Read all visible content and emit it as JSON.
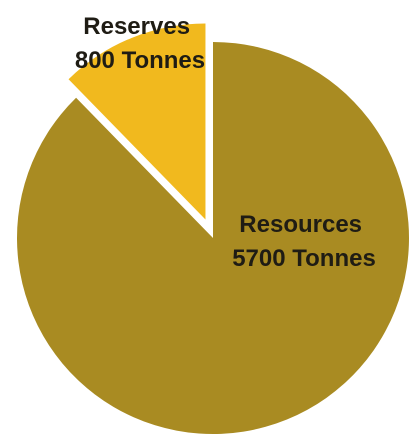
{
  "chart_data": {
    "type": "pie",
    "slices": [
      {
        "category": "Reserves",
        "value": 800,
        "unit": "Tonnes",
        "value_label": "800 Tonnes",
        "color": "#f1b91e",
        "exploded": true
      },
      {
        "category": "Resources",
        "value": 5700,
        "unit": "Tonnes",
        "value_label": "5700 Tonnes",
        "color": "#a98b22",
        "exploded": false
      }
    ],
    "title": "",
    "legend": "none"
  }
}
